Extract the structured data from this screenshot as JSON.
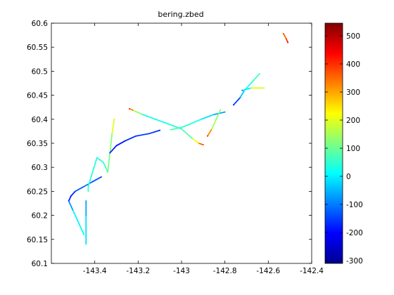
{
  "chart_data": {
    "type": "scatter",
    "title": "bering.zbed",
    "xlabel": "",
    "ylabel": "",
    "xlim": [
      -143.6,
      -142.4
    ],
    "ylim": [
      60.1,
      60.6
    ],
    "x_ticks": [
      -143.4,
      -143.2,
      -143.0,
      -142.8,
      -142.6,
      -142.4
    ],
    "x_tick_labels": [
      "-143.4",
      "-143.2",
      "-143",
      "-142.8",
      "-142.6",
      "-142.4"
    ],
    "y_ticks": [
      60.1,
      60.15,
      60.2,
      60.25,
      60.3,
      60.35,
      60.4,
      60.45,
      60.5,
      60.55,
      60.6
    ],
    "y_tick_labels": [
      "60.1",
      "60.15",
      "60.2",
      "60.25",
      "60.3",
      "60.35",
      "60.4",
      "60.45",
      "60.5",
      "60.55",
      "60.6"
    ],
    "grid": false,
    "colorbar": {
      "colormap": "jet",
      "range": [
        -310,
        545
      ],
      "ticks": [
        -300,
        -200,
        -100,
        0,
        100,
        200,
        300,
        400,
        500
      ],
      "tick_labels": [
        "-300",
        "-200",
        "-100",
        "0",
        "100",
        "200",
        "300",
        "400",
        "500"
      ]
    },
    "tracks": [
      {
        "name": "",
        "points": [
          [
            -143.44,
            60.14,
            20
          ],
          [
            -143.44,
            60.2,
            -50
          ],
          [
            -143.44,
            60.23,
            -80
          ]
        ]
      },
      {
        "name": "",
        "points": [
          [
            -143.45,
            60.16,
            20
          ],
          [
            -143.47,
            60.18,
            10
          ],
          [
            -143.5,
            60.21,
            0
          ],
          [
            -143.52,
            60.23,
            -150
          ],
          [
            -143.51,
            60.24,
            -200
          ],
          [
            -143.49,
            60.25,
            -150
          ],
          [
            -143.45,
            60.26,
            -100
          ],
          [
            -143.41,
            60.27,
            -130
          ],
          [
            -143.37,
            60.28,
            -150
          ]
        ]
      },
      {
        "name": "",
        "points": [
          [
            -143.34,
            60.29,
            100
          ],
          [
            -143.35,
            60.3,
            60
          ],
          [
            -143.36,
            60.31,
            50
          ],
          [
            -143.39,
            60.32,
            40
          ],
          [
            -143.43,
            60.26,
            40
          ],
          [
            -143.43,
            60.25,
            60
          ]
        ]
      },
      {
        "name": "",
        "points": [
          [
            -143.34,
            60.29,
            120
          ],
          [
            -143.33,
            60.33,
            100
          ],
          [
            -143.32,
            60.37,
            150
          ],
          [
            -143.31,
            60.4,
            250
          ]
        ]
      },
      {
        "name": "",
        "points": [
          [
            -143.33,
            60.33,
            -150
          ],
          [
            -143.3,
            60.345,
            -200
          ],
          [
            -143.26,
            60.355,
            -180
          ],
          [
            -143.21,
            60.365,
            -160
          ],
          [
            -143.15,
            60.37,
            -140
          ],
          [
            -143.1,
            60.377,
            -180
          ]
        ]
      },
      {
        "name": "",
        "points": [
          [
            -143.24,
            60.422,
            450
          ],
          [
            -143.22,
            60.418,
            200
          ],
          [
            -143.18,
            60.41,
            60
          ],
          [
            -143.12,
            60.4,
            0
          ],
          [
            -143.06,
            60.39,
            50
          ],
          [
            -143.0,
            60.38,
            40
          ],
          [
            -142.95,
            60.36,
            120
          ],
          [
            -142.92,
            60.35,
            300
          ],
          [
            -142.9,
            60.347,
            400
          ]
        ]
      },
      {
        "name": "",
        "points": [
          [
            -143.05,
            60.378,
            80
          ],
          [
            -143.0,
            60.383,
            60
          ],
          [
            -142.96,
            60.39,
            50
          ],
          [
            -142.91,
            60.4,
            20
          ],
          [
            -142.85,
            60.41,
            -50
          ],
          [
            -142.8,
            60.415,
            -80
          ]
        ]
      },
      {
        "name": "",
        "points": [
          [
            -142.88,
            60.365,
            450
          ],
          [
            -142.86,
            60.38,
            200
          ],
          [
            -142.84,
            60.4,
            100
          ],
          [
            -142.82,
            60.42,
            150
          ]
        ]
      },
      {
        "name": "",
        "points": [
          [
            -142.76,
            60.43,
            -200
          ],
          [
            -142.73,
            60.445,
            -100
          ],
          [
            -142.71,
            60.46,
            20
          ],
          [
            -142.67,
            60.48,
            50
          ],
          [
            -142.64,
            60.495,
            80
          ]
        ]
      },
      {
        "name": "",
        "points": [
          [
            -142.72,
            60.46,
            -150
          ],
          [
            -142.68,
            60.465,
            150
          ],
          [
            -142.62,
            60.465,
            250
          ]
        ]
      },
      {
        "name": "",
        "points": [
          [
            -142.53,
            60.578,
            400
          ],
          [
            -142.52,
            60.57,
            300
          ],
          [
            -142.51,
            60.56,
            500
          ]
        ]
      }
    ]
  }
}
